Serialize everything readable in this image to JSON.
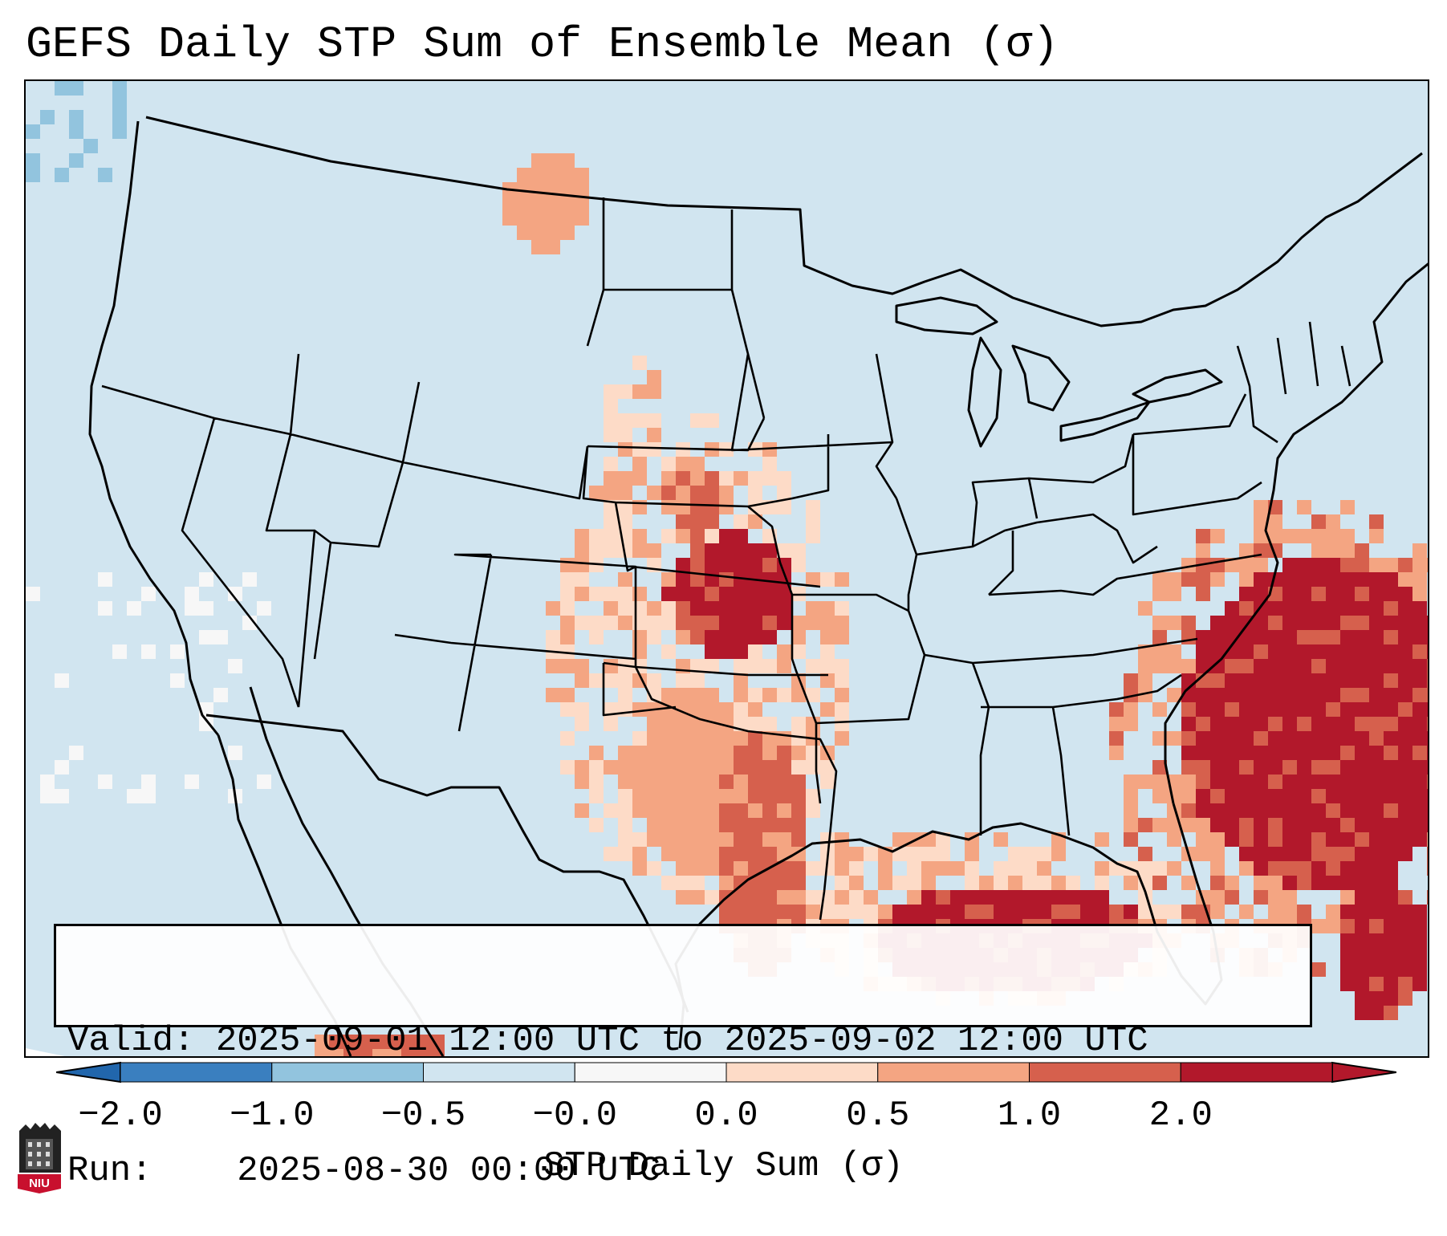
{
  "title": "GEFS Daily STP Sum of Ensemble Mean (σ)",
  "info": {
    "valid_label": "Valid:",
    "valid_value": "2025-09-01 12:00 UTC to 2025-09-02 12:00 UTC",
    "run_label": "Run:",
    "run_value": "2025-08-30 00:00 UTC"
  },
  "colorbar": {
    "label": "STP Daily Sum (σ)",
    "ticks": [
      "−2.0",
      "−1.0",
      "−0.5",
      "−0.0",
      "0.0",
      "0.5",
      "1.0",
      "2.0"
    ],
    "colors": [
      "#3a7fbf",
      "#92c4de",
      "#d1e5f0",
      "#f7f7f7",
      "#fddbc7",
      "#f4a582",
      "#d6604d",
      "#b2182b"
    ],
    "under_color": "#2166ac",
    "over_color": "#b2182b",
    "extend": "both"
  },
  "map": {
    "projection": "Lambert Conformal (CONUS)",
    "background_color": "#d1e5f0",
    "outside_color": "#ffffff",
    "coastline_color": "#000000",
    "features": [
      "coastlines",
      "state borders",
      "country borders",
      "lakes"
    ]
  },
  "logo_text": "NIU"
}
